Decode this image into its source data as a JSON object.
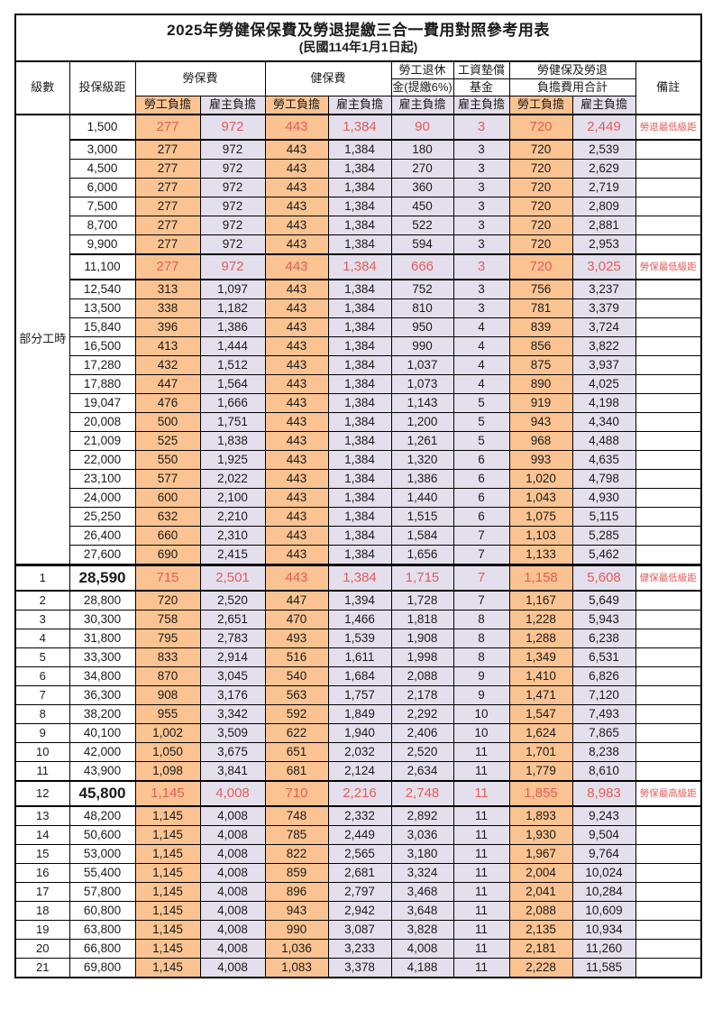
{
  "title": "2025年勞健保保費及勞退提繳三合一費用對照參考用表",
  "subtitle": "(民國114年1月1日起)",
  "columns": {
    "level": "級數",
    "bracket": "投保級距",
    "labor": "勞保費",
    "health": "健保費",
    "pension_line1": "勞工退休",
    "pension_line2": "金(提繳6%)",
    "wage_fund_line1": "工資墊償",
    "wage_fund_line2": "基金",
    "total_line1": "勞健保及勞退",
    "total_line2": "負擔費用合計",
    "remark": "備註",
    "employee": "勞工負擔",
    "employer": "雇主負擔"
  },
  "part_time_label": "部分工時",
  "colors": {
    "employee_bg": "#FAC391",
    "employer_bg": "#E4DFEC",
    "highlight_text": "#E35D5B",
    "border": "#000000",
    "text": "#1B1B1B"
  },
  "remarks": {
    "pension_min": "勞退最低級距",
    "labor_min": "勞保最低級距",
    "health_min": "健保最低級距",
    "labor_max": "勞保最高級距"
  },
  "rows": [
    {
      "g": "pt",
      "bracket": "1,500",
      "v": [
        "277",
        "972",
        "443",
        "1,384",
        "90",
        "3",
        "720",
        "2,449"
      ],
      "remark": "勞退最低級距",
      "hl": true
    },
    {
      "g": "pt",
      "bracket": "3,000",
      "v": [
        "277",
        "972",
        "443",
        "1,384",
        "180",
        "3",
        "720",
        "2,539"
      ]
    },
    {
      "g": "pt",
      "bracket": "4,500",
      "v": [
        "277",
        "972",
        "443",
        "1,384",
        "270",
        "3",
        "720",
        "2,629"
      ]
    },
    {
      "g": "pt",
      "bracket": "6,000",
      "v": [
        "277",
        "972",
        "443",
        "1,384",
        "360",
        "3",
        "720",
        "2,719"
      ]
    },
    {
      "g": "pt",
      "bracket": "7,500",
      "v": [
        "277",
        "972",
        "443",
        "1,384",
        "450",
        "3",
        "720",
        "2,809"
      ]
    },
    {
      "g": "pt",
      "bracket": "8,700",
      "v": [
        "277",
        "972",
        "443",
        "1,384",
        "522",
        "3",
        "720",
        "2,881"
      ]
    },
    {
      "g": "pt",
      "bracket": "9,900",
      "v": [
        "277",
        "972",
        "443",
        "1,384",
        "594",
        "3",
        "720",
        "2,953"
      ]
    },
    {
      "g": "pt",
      "bracket": "11,100",
      "v": [
        "277",
        "972",
        "443",
        "1,384",
        "666",
        "3",
        "720",
        "3,025"
      ],
      "remark": "勞保最低級距",
      "hl": true
    },
    {
      "g": "pt",
      "bracket": "12,540",
      "v": [
        "313",
        "1,097",
        "443",
        "1,384",
        "752",
        "3",
        "756",
        "3,237"
      ]
    },
    {
      "g": "pt",
      "bracket": "13,500",
      "v": [
        "338",
        "1,182",
        "443",
        "1,384",
        "810",
        "3",
        "781",
        "3,379"
      ]
    },
    {
      "g": "pt",
      "bracket": "15,840",
      "v": [
        "396",
        "1,386",
        "443",
        "1,384",
        "950",
        "4",
        "839",
        "3,724"
      ]
    },
    {
      "g": "pt",
      "bracket": "16,500",
      "v": [
        "413",
        "1,444",
        "443",
        "1,384",
        "990",
        "4",
        "856",
        "3,822"
      ]
    },
    {
      "g": "pt",
      "bracket": "17,280",
      "v": [
        "432",
        "1,512",
        "443",
        "1,384",
        "1,037",
        "4",
        "875",
        "3,937"
      ]
    },
    {
      "g": "pt",
      "bracket": "17,880",
      "v": [
        "447",
        "1,564",
        "443",
        "1,384",
        "1,073",
        "4",
        "890",
        "4,025"
      ]
    },
    {
      "g": "pt",
      "bracket": "19,047",
      "v": [
        "476",
        "1,666",
        "443",
        "1,384",
        "1,143",
        "5",
        "919",
        "4,198"
      ]
    },
    {
      "g": "pt",
      "bracket": "20,008",
      "v": [
        "500",
        "1,751",
        "443",
        "1,384",
        "1,200",
        "5",
        "943",
        "4,340"
      ]
    },
    {
      "g": "pt",
      "bracket": "21,009",
      "v": [
        "525",
        "1,838",
        "443",
        "1,384",
        "1,261",
        "5",
        "968",
        "4,488"
      ]
    },
    {
      "g": "pt",
      "bracket": "22,000",
      "v": [
        "550",
        "1,925",
        "443",
        "1,384",
        "1,320",
        "6",
        "993",
        "4,635"
      ]
    },
    {
      "g": "pt",
      "bracket": "23,100",
      "v": [
        "577",
        "2,022",
        "443",
        "1,384",
        "1,386",
        "6",
        "1,020",
        "4,798"
      ]
    },
    {
      "g": "pt",
      "bracket": "24,000",
      "v": [
        "600",
        "2,100",
        "443",
        "1,384",
        "1,440",
        "6",
        "1,043",
        "4,930"
      ]
    },
    {
      "g": "pt",
      "bracket": "25,250",
      "v": [
        "632",
        "2,210",
        "443",
        "1,384",
        "1,515",
        "6",
        "1,075",
        "5,115"
      ]
    },
    {
      "g": "pt",
      "bracket": "26,400",
      "v": [
        "660",
        "2,310",
        "443",
        "1,384",
        "1,584",
        "7",
        "1,103",
        "5,285"
      ]
    },
    {
      "g": "pt",
      "bracket": "27,600",
      "v": [
        "690",
        "2,415",
        "443",
        "1,384",
        "1,656",
        "7",
        "1,133",
        "5,462"
      ]
    },
    {
      "g": "lv",
      "level": "1",
      "bracket": "28,590",
      "v": [
        "715",
        "2,501",
        "443",
        "1,384",
        "1,715",
        "7",
        "1,158",
        "5,608"
      ],
      "remark": "健保最低級距",
      "hl": true,
      "big": true
    },
    {
      "g": "lv",
      "level": "2",
      "bracket": "28,800",
      "v": [
        "720",
        "2,520",
        "447",
        "1,394",
        "1,728",
        "7",
        "1,167",
        "5,649"
      ]
    },
    {
      "g": "lv",
      "level": "3",
      "bracket": "30,300",
      "v": [
        "758",
        "2,651",
        "470",
        "1,466",
        "1,818",
        "8",
        "1,228",
        "5,943"
      ]
    },
    {
      "g": "lv",
      "level": "4",
      "bracket": "31,800",
      "v": [
        "795",
        "2,783",
        "493",
        "1,539",
        "1,908",
        "8",
        "1,288",
        "6,238"
      ]
    },
    {
      "g": "lv",
      "level": "5",
      "bracket": "33,300",
      "v": [
        "833",
        "2,914",
        "516",
        "1,611",
        "1,998",
        "8",
        "1,349",
        "6,531"
      ]
    },
    {
      "g": "lv",
      "level": "6",
      "bracket": "34,800",
      "v": [
        "870",
        "3,045",
        "540",
        "1,684",
        "2,088",
        "9",
        "1,410",
        "6,826"
      ]
    },
    {
      "g": "lv",
      "level": "7",
      "bracket": "36,300",
      "v": [
        "908",
        "3,176",
        "563",
        "1,757",
        "2,178",
        "9",
        "1,471",
        "7,120"
      ]
    },
    {
      "g": "lv",
      "level": "8",
      "bracket": "38,200",
      "v": [
        "955",
        "3,342",
        "592",
        "1,849",
        "2,292",
        "10",
        "1,547",
        "7,493"
      ]
    },
    {
      "g": "lv",
      "level": "9",
      "bracket": "40,100",
      "v": [
        "1,002",
        "3,509",
        "622",
        "1,940",
        "2,406",
        "10",
        "1,624",
        "7,865"
      ]
    },
    {
      "g": "lv",
      "level": "10",
      "bracket": "42,000",
      "v": [
        "1,050",
        "3,675",
        "651",
        "2,032",
        "2,520",
        "11",
        "1,701",
        "8,238"
      ]
    },
    {
      "g": "lv",
      "level": "11",
      "bracket": "43,900",
      "v": [
        "1,098",
        "3,841",
        "681",
        "2,124",
        "2,634",
        "11",
        "1,779",
        "8,610"
      ]
    },
    {
      "g": "lv",
      "level": "12",
      "bracket": "45,800",
      "v": [
        "1,145",
        "4,008",
        "710",
        "2,216",
        "2,748",
        "11",
        "1,855",
        "8,983"
      ],
      "remark": "勞保最高級距",
      "hl": true,
      "big": true
    },
    {
      "g": "lv",
      "level": "13",
      "bracket": "48,200",
      "v": [
        "1,145",
        "4,008",
        "748",
        "2,332",
        "2,892",
        "11",
        "1,893",
        "9,243"
      ]
    },
    {
      "g": "lv",
      "level": "14",
      "bracket": "50,600",
      "v": [
        "1,145",
        "4,008",
        "785",
        "2,449",
        "3,036",
        "11",
        "1,930",
        "9,504"
      ]
    },
    {
      "g": "lv",
      "level": "15",
      "bracket": "53,000",
      "v": [
        "1,145",
        "4,008",
        "822",
        "2,565",
        "3,180",
        "11",
        "1,967",
        "9,764"
      ]
    },
    {
      "g": "lv",
      "level": "16",
      "bracket": "55,400",
      "v": [
        "1,145",
        "4,008",
        "859",
        "2,681",
        "3,324",
        "11",
        "2,004",
        "10,024"
      ]
    },
    {
      "g": "lv",
      "level": "17",
      "bracket": "57,800",
      "v": [
        "1,145",
        "4,008",
        "896",
        "2,797",
        "3,468",
        "11",
        "2,041",
        "10,284"
      ]
    },
    {
      "g": "lv",
      "level": "18",
      "bracket": "60,800",
      "v": [
        "1,145",
        "4,008",
        "943",
        "2,942",
        "3,648",
        "11",
        "2,088",
        "10,609"
      ]
    },
    {
      "g": "lv",
      "level": "19",
      "bracket": "63,800",
      "v": [
        "1,145",
        "4,008",
        "990",
        "3,087",
        "3,828",
        "11",
        "2,135",
        "10,934"
      ]
    },
    {
      "g": "lv",
      "level": "20",
      "bracket": "66,800",
      "v": [
        "1,145",
        "4,008",
        "1,036",
        "3,233",
        "4,008",
        "11",
        "2,181",
        "11,260"
      ]
    },
    {
      "g": "lv",
      "level": "21",
      "bracket": "69,800",
      "v": [
        "1,145",
        "4,008",
        "1,083",
        "3,378",
        "4,188",
        "11",
        "2,228",
        "11,585"
      ]
    }
  ]
}
